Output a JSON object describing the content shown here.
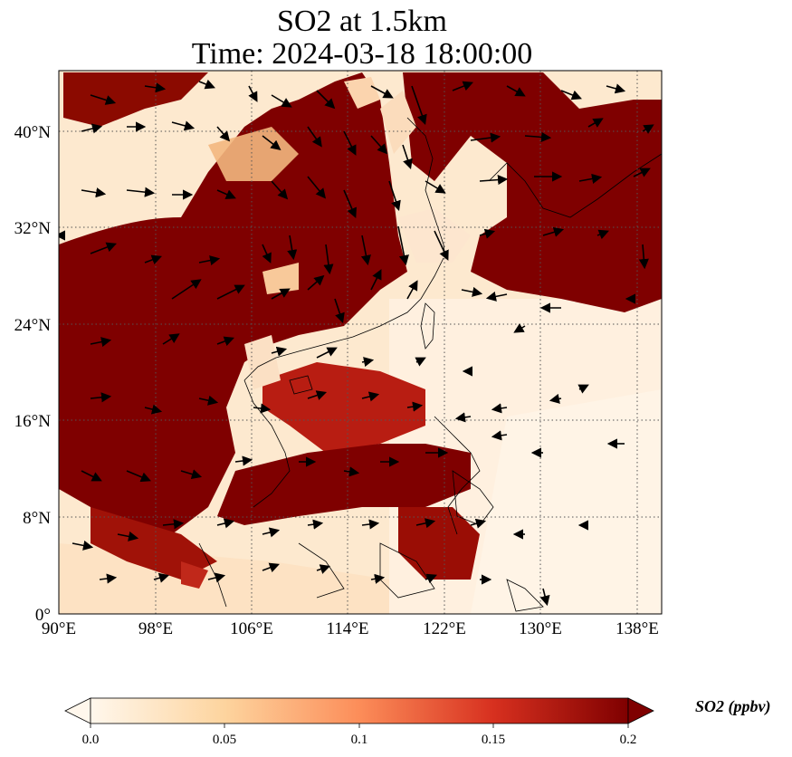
{
  "title_line1": "SO2 at 1.5km",
  "title_line2": "Time: 2024-03-18 18:00:00",
  "map": {
    "projection": "PlateCarree",
    "lon_range": [
      90,
      140
    ],
    "lat_range": [
      0,
      45
    ],
    "gridlines": "dotted",
    "x_ticks": [
      "90°E",
      "98°E",
      "106°E",
      "114°E",
      "122°E",
      "130°E",
      "138°E"
    ],
    "y_ticks": [
      "0°",
      "8°N",
      "16°N",
      "24°N",
      "32°N",
      "40°N"
    ],
    "field": "SO2 concentration",
    "overlay": "wind vectors"
  },
  "colorbar": {
    "label": "SO2 (ppbv)",
    "ticks": [
      "0.0",
      "0.05",
      "0.1",
      "0.15",
      "0.2"
    ],
    "range": [
      0.0,
      0.2
    ],
    "colormap": "OrRd",
    "extend": "both",
    "colors": [
      "#fff7ec",
      "#fdd49e",
      "#fc8d59",
      "#d7301f",
      "#7f0000"
    ]
  }
}
